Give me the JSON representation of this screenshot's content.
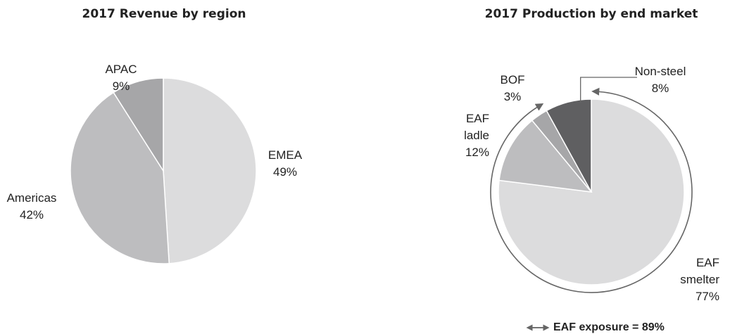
{
  "chart_data": [
    {
      "type": "pie",
      "title": "2017 Revenue by region",
      "categories": [
        "EMEA",
        "Americas",
        "APAC"
      ],
      "values": [
        49,
        42,
        9
      ],
      "value_labels": [
        "49%",
        "42%",
        "9%"
      ],
      "colors": [
        "#dcdcdd",
        "#bdbdbf",
        "#a6a6a8"
      ]
    },
    {
      "type": "pie",
      "title": "2017 Production by end market",
      "categories": [
        "EAF smelter",
        "EAF ladle",
        "BOF",
        "Non-steel"
      ],
      "values": [
        77,
        12,
        3,
        8
      ],
      "value_labels": [
        "77%",
        "12%",
        "3%",
        "8%"
      ],
      "colors": [
        "#dcdcdd",
        "#bdbdbf",
        "#a6a6a8",
        "#5f5f61"
      ],
      "annotation": "EAF exposure = 89%"
    }
  ]
}
